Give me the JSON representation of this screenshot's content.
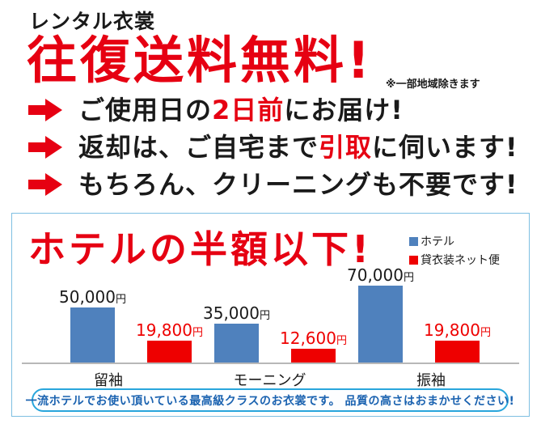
{
  "colors": {
    "heading_red": "#e60012",
    "bar_blue": "#4f81bd",
    "bar_red": "#ee0000",
    "text_black": "#1a1a1a",
    "box_border_blue": "#7ebfe2",
    "pill_border_blue": "#29a6dc",
    "pill_text_blue": "#1a62b0",
    "axis_gray": "#b8b8b8"
  },
  "header": {
    "small_title": "レンタル衣裳",
    "main_title": "往復送料無料!",
    "note": "※一部地域除きます"
  },
  "bullets": [
    {
      "parts": [
        {
          "text": "ご使用日の",
          "color": "black"
        },
        {
          "text": "2日前",
          "color": "red"
        },
        {
          "text": "にお届け!",
          "color": "black"
        }
      ]
    },
    {
      "parts": [
        {
          "text": "返却は、ご自宅まで",
          "color": "black"
        },
        {
          "text": "引取",
          "color": "red"
        },
        {
          "text": "に伺います!",
          "color": "black"
        }
      ]
    },
    {
      "parts": [
        {
          "text": "もちろん、クリーニングも不要です!",
          "color": "black"
        }
      ]
    }
  ],
  "chart_box": {
    "title": "ホテルの半額以下!",
    "footer": "一流ホテルでお使い頂いている最高級クラスのお衣裳です。 品質の高さはおまかせください!"
  },
  "chart_data": {
    "type": "bar",
    "title": "ホテルの半額以下!",
    "categories": [
      "留袖",
      "モーニング",
      "振袖"
    ],
    "series": [
      {
        "name": "ホテル",
        "color": "#4f81bd",
        "label_color": "#1a1a1a",
        "values": [
          50000,
          35000,
          70000
        ],
        "labels": [
          {
            "num": "50,000",
            "unit": "円"
          },
          {
            "num": "35,000",
            "unit": "円"
          },
          {
            "num": "70,000",
            "unit": "円"
          }
        ]
      },
      {
        "name": "貸衣装ネット便",
        "color": "#ee0000",
        "label_color": "#ee0000",
        "values": [
          19800,
          12600,
          19800
        ],
        "labels": [
          {
            "num": "19,800",
            "unit": "円"
          },
          {
            "num": "12,600",
            "unit": "円"
          },
          {
            "num": "19,800",
            "unit": "円"
          }
        ]
      }
    ],
    "unit": "円",
    "ylim": [
      0,
      70000
    ],
    "grid": false,
    "legend_position": "top-right",
    "xlabel": "",
    "ylabel": ""
  }
}
